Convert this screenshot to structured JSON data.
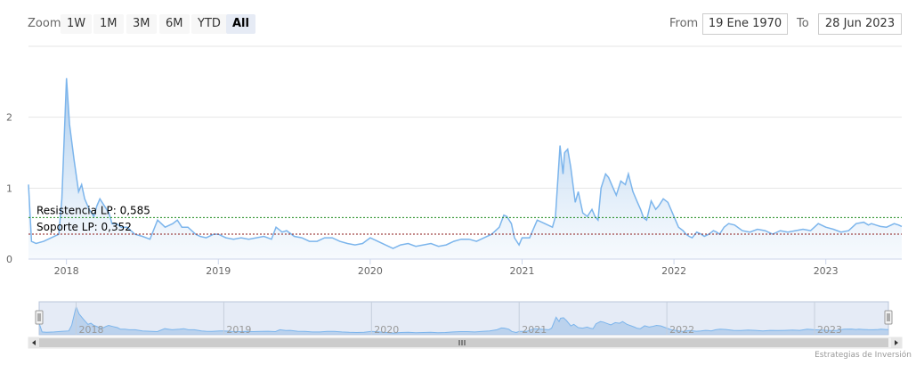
{
  "range_selector": {
    "zoom_label": "Zoom",
    "buttons": [
      "1W",
      "1M",
      "3M",
      "6M",
      "YTD",
      "All"
    ],
    "active": "All",
    "from_label": "From",
    "from_value": "19 Ene 1970",
    "to_label": "To",
    "to_value": "28 Jun 2023"
  },
  "credits": "Estrategias de Inversión",
  "colors": {
    "line": "#7cb5ec",
    "area_top": "#9ec4ea",
    "area_bottom": "#eef5fc",
    "resistance": "#1a8a1a",
    "support": "#8b1a1a",
    "grid": "#e6e6e6",
    "navigator_mask": "#cfdaef"
  },
  "chart_data": {
    "type": "area",
    "title": "",
    "xlabel": "",
    "ylabel": "",
    "ylim": [
      0,
      3
    ],
    "yticks": [
      "0",
      "1",
      "2"
    ],
    "xlim": [
      2017.75,
      2023.5
    ],
    "xticks": [
      "2018",
      "2019",
      "2020",
      "2021",
      "2022",
      "2023"
    ],
    "grid": true,
    "series": [
      {
        "x": [
          2017.75,
          2017.77,
          2017.8,
          2017.85,
          2017.9,
          2017.95,
          2017.97,
          2018.0,
          2018.02,
          2018.05,
          2018.08,
          2018.1,
          2018.12,
          2018.15,
          2018.18,
          2018.2,
          2018.22,
          2018.25,
          2018.28,
          2018.3,
          2018.33,
          2018.36,
          2018.4,
          2018.45,
          2018.5,
          2018.55,
          2018.6,
          2018.65,
          2018.7,
          2018.73,
          2018.76,
          2018.8,
          2018.85,
          2018.88,
          2018.92,
          2018.97,
          2019.0,
          2019.05,
          2019.1,
          2019.15,
          2019.2,
          2019.25,
          2019.3,
          2019.35,
          2019.38,
          2019.42,
          2019.45,
          2019.5,
          2019.55,
          2019.6,
          2019.65,
          2019.7,
          2019.75,
          2019.8,
          2019.85,
          2019.9,
          2019.95,
          2020.0,
          2020.05,
          2020.1,
          2020.15,
          2020.2,
          2020.25,
          2020.3,
          2020.35,
          2020.4,
          2020.45,
          2020.5,
          2020.55,
          2020.6,
          2020.65,
          2020.7,
          2020.75,
          2020.8,
          2020.85,
          2020.88,
          2020.9,
          2020.93,
          2020.95,
          2020.98,
          2021.0,
          2021.05,
          2021.1,
          2021.15,
          2021.2,
          2021.22,
          2021.25,
          2021.27,
          2021.28,
          2021.3,
          2021.32,
          2021.35,
          2021.37,
          2021.4,
          2021.43,
          2021.46,
          2021.48,
          2021.5,
          2021.52,
          2021.55,
          2021.57,
          2021.6,
          2021.62,
          2021.65,
          2021.68,
          2021.7,
          2021.73,
          2021.76,
          2021.78,
          2021.8,
          2021.82,
          2021.85,
          2021.88,
          2021.9,
          2021.93,
          2021.96,
          2022.0,
          2022.03,
          2022.06,
          2022.08,
          2022.1,
          2022.12,
          2022.15,
          2022.18,
          2022.2,
          2022.23,
          2022.26,
          2022.28,
          2022.3,
          2022.33,
          2022.36,
          2022.4,
          2022.45,
          2022.5,
          2022.55,
          2022.6,
          2022.65,
          2022.7,
          2022.75,
          2022.8,
          2022.85,
          2022.9,
          2022.95,
          2023.0,
          2023.05,
          2023.1,
          2023.15,
          2023.2,
          2023.25,
          2023.28,
          2023.3,
          2023.33,
          2023.36,
          2023.4,
          2023.43,
          2023.45,
          2023.48,
          2023.5
        ],
        "y": [
          1.05,
          0.25,
          0.22,
          0.25,
          0.3,
          0.35,
          0.85,
          2.55,
          1.9,
          1.4,
          0.95,
          1.05,
          0.85,
          0.7,
          0.6,
          0.75,
          0.85,
          0.75,
          0.65,
          0.5,
          0.5,
          0.45,
          0.45,
          0.35,
          0.32,
          0.28,
          0.55,
          0.45,
          0.5,
          0.55,
          0.45,
          0.45,
          0.35,
          0.32,
          0.3,
          0.35,
          0.35,
          0.3,
          0.28,
          0.3,
          0.28,
          0.3,
          0.32,
          0.28,
          0.45,
          0.38,
          0.4,
          0.32,
          0.3,
          0.25,
          0.25,
          0.3,
          0.3,
          0.25,
          0.22,
          0.2,
          0.22,
          0.3,
          0.25,
          0.2,
          0.15,
          0.2,
          0.22,
          0.18,
          0.2,
          0.22,
          0.18,
          0.2,
          0.25,
          0.28,
          0.28,
          0.25,
          0.3,
          0.35,
          0.45,
          0.62,
          0.6,
          0.5,
          0.3,
          0.2,
          0.3,
          0.3,
          0.55,
          0.5,
          0.45,
          0.6,
          1.6,
          1.2,
          1.5,
          1.55,
          1.3,
          0.8,
          0.95,
          0.65,
          0.6,
          0.7,
          0.6,
          0.55,
          1.0,
          1.2,
          1.15,
          1.0,
          0.9,
          1.1,
          1.05,
          1.2,
          0.95,
          0.8,
          0.7,
          0.58,
          0.55,
          0.82,
          0.7,
          0.75,
          0.85,
          0.8,
          0.6,
          0.45,
          0.4,
          0.35,
          0.32,
          0.3,
          0.38,
          0.35,
          0.32,
          0.35,
          0.4,
          0.38,
          0.35,
          0.45,
          0.5,
          0.48,
          0.4,
          0.38,
          0.42,
          0.4,
          0.35,
          0.4,
          0.38,
          0.4,
          0.42,
          0.4,
          0.5,
          0.45,
          0.42,
          0.38,
          0.4,
          0.5,
          0.52,
          0.48,
          0.5,
          0.48,
          0.46,
          0.45,
          0.48,
          0.5,
          0.48,
          0.46
        ]
      }
    ],
    "annotations": [
      {
        "label": "Resistencia LP: 0,585",
        "value": 0.585
      },
      {
        "label": "Soporte LP: 0,352",
        "value": 0.352
      }
    ]
  }
}
